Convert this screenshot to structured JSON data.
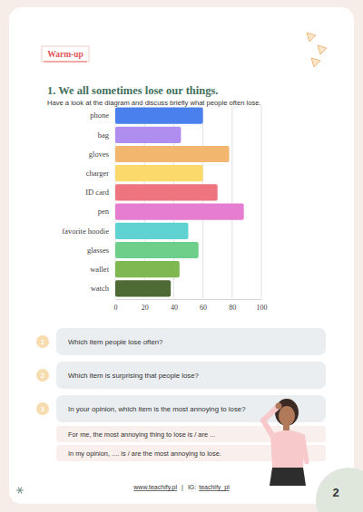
{
  "section": {
    "label": "Warm-up",
    "title": "1. We all sometimes lose our things.",
    "instruction": "Have a look at the diagram and discuss briefly what people often lose."
  },
  "chart_data": {
    "type": "bar",
    "orientation": "horizontal",
    "categories": [
      "phone",
      "bag",
      "gloves",
      "charger",
      "ID card",
      "pen",
      "favorite hoodie",
      "glasses",
      "wallet",
      "watch"
    ],
    "values": [
      60,
      45,
      78,
      60,
      70,
      88,
      50,
      57,
      44,
      38
    ],
    "colors": [
      "#4a7fee",
      "#b08ef0",
      "#f2b66e",
      "#fbd96a",
      "#ee7480",
      "#e67dd0",
      "#5fd3d1",
      "#6dcf8a",
      "#7fb850",
      "#4f6b35"
    ],
    "xlim": [
      0,
      100
    ],
    "xticks": [
      0,
      20,
      40,
      60,
      80,
      100
    ],
    "grid": true
  },
  "questions": [
    {
      "number": 1,
      "text": "Which item people lose often?"
    },
    {
      "number": 2,
      "text": "Which item is surprising that people lose?"
    },
    {
      "number": 3,
      "text": "In your opinion, which item is the most annoying to lose?"
    }
  ],
  "answer_frames": [
    "For me, the most annoying thing to lose is / are ...",
    "In my opinion, .... is / are the most annoying to lose."
  ],
  "footer": {
    "website": "www.teachify.pl",
    "separator": "|",
    "social_prefix": "IG:",
    "social": "teachify_pl",
    "page": 2
  }
}
